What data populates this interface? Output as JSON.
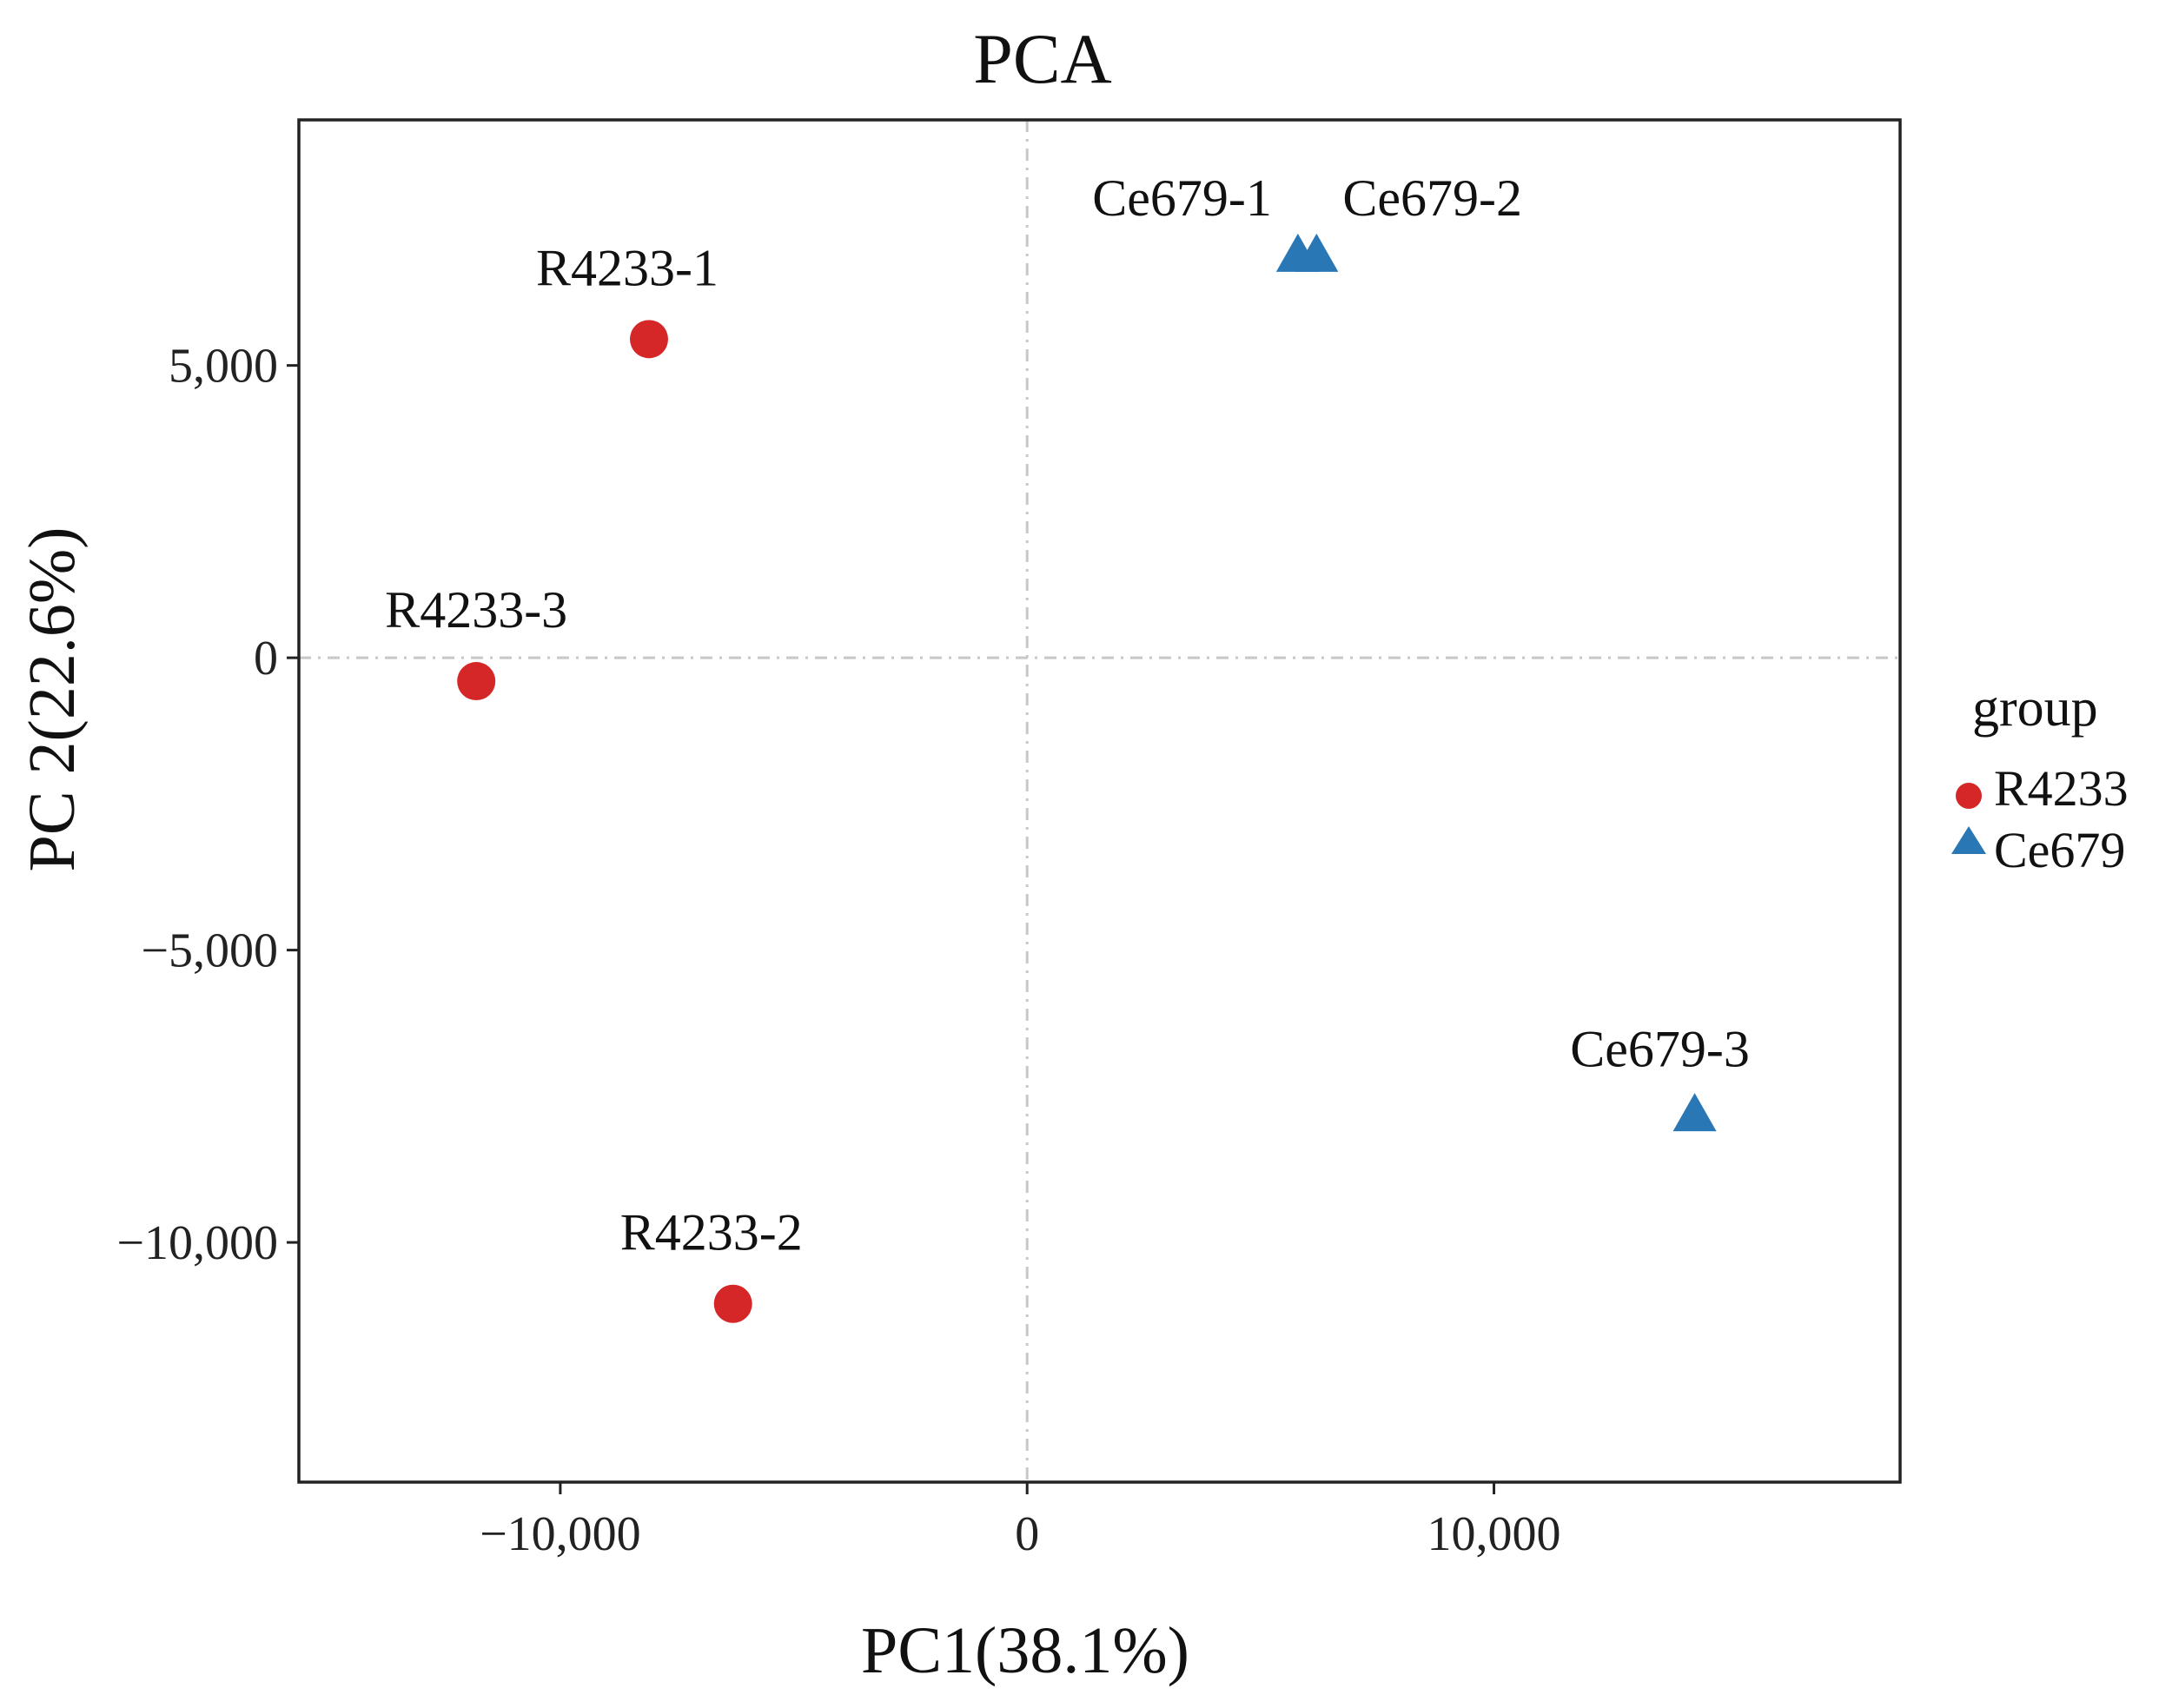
{
  "chart_data": {
    "type": "scatter",
    "title": "PCA",
    "xlabel": "PC1(38.1%)",
    "ylabel": "PC 2(22.6%)",
    "xlim": [
      -15600,
      18700
    ],
    "ylim": [
      -14100,
      9200
    ],
    "xticks": [
      {
        "value": -10000,
        "label": "−10,000"
      },
      {
        "value": 0,
        "label": "0"
      },
      {
        "value": 10000,
        "label": "10,000"
      }
    ],
    "yticks": [
      {
        "value": 5000,
        "label": "5,000"
      },
      {
        "value": 0,
        "label": "0"
      },
      {
        "value": -5000,
        "label": "−5,000"
      },
      {
        "value": -10000,
        "label": "−10,000"
      }
    ],
    "reference_lines": {
      "x": 0,
      "y": 0
    },
    "grid": false,
    "legend": {
      "title": "group",
      "position": "right",
      "entries": [
        {
          "name": "R4233",
          "shape": "circle",
          "color": "#d62728"
        },
        {
          "name": "Ce679",
          "shape": "triangle",
          "color": "#2a77b5"
        }
      ]
    },
    "series": [
      {
        "name": "R4233",
        "shape": "circle",
        "color": "#d62728",
        "points": [
          {
            "label": "R4233-1",
            "x": -8100,
            "y": 5450
          },
          {
            "label": "R4233-2",
            "x": -6300,
            "y": -11050
          },
          {
            "label": "R4233-3",
            "x": -11800,
            "y": -400
          }
        ]
      },
      {
        "name": "Ce679",
        "shape": "triangle",
        "color": "#2a77b5",
        "points": [
          {
            "label": "Ce679-1",
            "x": 5800,
            "y": 6850
          },
          {
            "label": "Ce679-2",
            "x": 6200,
            "y": 6850
          },
          {
            "label": "Ce679-3",
            "x": 14300,
            "y": -7850
          }
        ]
      }
    ]
  }
}
